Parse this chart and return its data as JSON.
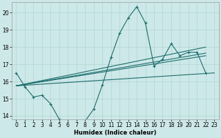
{
  "xlabel": "Humidex (Indice chaleur)",
  "ylabel": "",
  "xlim": [
    -0.5,
    23.5
  ],
  "ylim": [
    13.8,
    20.6
  ],
  "yticks": [
    14,
    15,
    16,
    17,
    18,
    19,
    20
  ],
  "xticks": [
    0,
    1,
    2,
    3,
    4,
    5,
    6,
    7,
    8,
    9,
    10,
    11,
    12,
    13,
    14,
    15,
    16,
    17,
    18,
    19,
    20,
    21,
    22,
    23
  ],
  "bg_color": "#cde8e8",
  "grid_color": "#b0d4d4",
  "line_color": "#1a6b6b",
  "main_x": [
    0,
    1,
    2,
    3,
    4,
    5,
    6,
    7,
    8,
    9,
    10,
    11,
    12,
    13,
    14,
    15,
    16,
    17,
    18,
    19,
    20,
    21,
    22
  ],
  "main_y": [
    16.5,
    15.7,
    15.1,
    15.2,
    14.7,
    13.8,
    13.6,
    13.6,
    13.7,
    14.4,
    15.8,
    17.4,
    18.8,
    19.7,
    20.35,
    19.4,
    16.9,
    17.3,
    18.2,
    17.5,
    17.7,
    17.7,
    16.5
  ],
  "reg_lines": [
    {
      "x": [
        0,
        23
      ],
      "y": [
        15.75,
        16.5
      ]
    },
    {
      "x": [
        0,
        22
      ],
      "y": [
        15.75,
        17.5
      ]
    },
    {
      "x": [
        0,
        22
      ],
      "y": [
        15.75,
        17.65
      ]
    },
    {
      "x": [
        0,
        22
      ],
      "y": [
        15.75,
        18.0
      ]
    }
  ]
}
